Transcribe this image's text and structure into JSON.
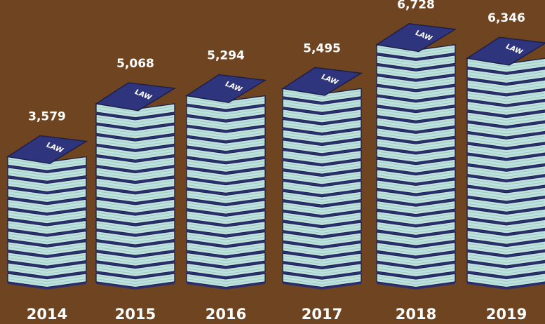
{
  "chart_data": {
    "type": "bar",
    "categories": [
      "2014",
      "2015",
      "2016",
      "2017",
      "2018",
      "2019"
    ],
    "values": [
      3579,
      5068,
      5294,
      5495,
      6728,
      6346
    ],
    "value_labels": [
      "3,579",
      "5,068",
      "5,294",
      "5,495",
      "6,728",
      "6,346"
    ],
    "book_cover_text": "LAW",
    "title": "",
    "xlabel": "",
    "ylabel": "",
    "ylim": [
      0,
      7000
    ],
    "grid": false,
    "legend": "none"
  },
  "colors": {
    "background": "#6f4420",
    "cover": "#2b2f6e",
    "cover_top": "#2f357c",
    "pages": "#bfe3df",
    "page_lines": "#9fc7c2",
    "outline": "#1c1f4a",
    "text": "#ffffff"
  }
}
